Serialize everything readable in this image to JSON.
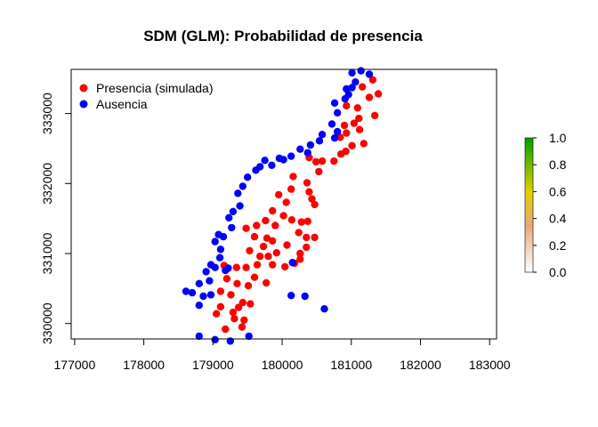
{
  "chart_data": {
    "type": "scatter",
    "title": "SDM (GLM): Probabilidad de presencia",
    "xlabel": "",
    "ylabel": "",
    "xlim": [
      176950,
      183100
    ],
    "ylim": [
      329780,
      333630
    ],
    "x_ticks": [
      177000,
      178000,
      179000,
      180000,
      181000,
      182000,
      183000
    ],
    "x_tick_labels": [
      "177000",
      "178000",
      "179000",
      "180000",
      "181000",
      "182000",
      "183000"
    ],
    "y_ticks": [
      330000,
      331000,
      332000,
      333000
    ],
    "y_tick_labels": [
      "330000",
      "331000",
      "332000",
      "333000"
    ],
    "legend_position": "top-left",
    "series": [
      {
        "name": "Presencia (simulada)",
        "color": "#ff0000",
        "points": [
          [
            180930,
            333110
          ],
          [
            181090,
            333080
          ],
          [
            181160,
            333380
          ],
          [
            181260,
            333230
          ],
          [
            181310,
            333480
          ],
          [
            181390,
            333280
          ],
          [
            181340,
            332970
          ],
          [
            181110,
            332930
          ],
          [
            180900,
            332830
          ],
          [
            181040,
            332860
          ],
          [
            180930,
            332720
          ],
          [
            181120,
            332770
          ],
          [
            180840,
            332660
          ],
          [
            181010,
            332540
          ],
          [
            181180,
            332570
          ],
          [
            180920,
            332460
          ],
          [
            180750,
            332320
          ],
          [
            180850,
            332420
          ],
          [
            180580,
            332320
          ],
          [
            180490,
            332310
          ],
          [
            180390,
            332370
          ],
          [
            180530,
            332170
          ],
          [
            180160,
            332100
          ],
          [
            180130,
            331920
          ],
          [
            180360,
            332010
          ],
          [
            180390,
            331880
          ],
          [
            180430,
            331780
          ],
          [
            180470,
            331700
          ],
          [
            180060,
            331730
          ],
          [
            179950,
            331840
          ],
          [
            179860,
            331610
          ],
          [
            180020,
            331540
          ],
          [
            180140,
            331480
          ],
          [
            180280,
            331450
          ],
          [
            180370,
            331460
          ],
          [
            180240,
            331300
          ],
          [
            179900,
            331400
          ],
          [
            179760,
            331470
          ],
          [
            179630,
            331400
          ],
          [
            179480,
            331360
          ],
          [
            179600,
            331240
          ],
          [
            179780,
            331220
          ],
          [
            179860,
            331180
          ],
          [
            179730,
            331100
          ],
          [
            179530,
            331040
          ],
          [
            179680,
            330960
          ],
          [
            179800,
            330960
          ],
          [
            179640,
            330840
          ],
          [
            179480,
            330800
          ],
          [
            179340,
            330800
          ],
          [
            179160,
            330830
          ],
          [
            179200,
            330640
          ],
          [
            179110,
            330460
          ],
          [
            179350,
            330570
          ],
          [
            179600,
            330660
          ],
          [
            179510,
            330540
          ],
          [
            179860,
            330840
          ],
          [
            180040,
            330810
          ],
          [
            180180,
            330860
          ],
          [
            180260,
            330920
          ],
          [
            180350,
            331090
          ],
          [
            180470,
            331230
          ],
          [
            180350,
            331230
          ],
          [
            180260,
            331000
          ],
          [
            180070,
            331120
          ],
          [
            179920,
            331010
          ],
          [
            179770,
            330580
          ],
          [
            179260,
            330410
          ],
          [
            179370,
            330230
          ],
          [
            179430,
            330300
          ],
          [
            179540,
            330280
          ],
          [
            179110,
            330240
          ],
          [
            179290,
            330160
          ],
          [
            179050,
            330140
          ],
          [
            179310,
            330070
          ],
          [
            179450,
            330050
          ],
          [
            179180,
            329920
          ],
          [
            179420,
            329950
          ]
        ]
      },
      {
        "name": "Ausencia",
        "color": "#0000ff",
        "points": [
          [
            181010,
            333580
          ],
          [
            181140,
            333610
          ],
          [
            181260,
            333560
          ],
          [
            181060,
            333450
          ],
          [
            180930,
            333350
          ],
          [
            181010,
            333370
          ],
          [
            180960,
            333270
          ],
          [
            180910,
            333210
          ],
          [
            180760,
            333150
          ],
          [
            180800,
            333010
          ],
          [
            180720,
            332850
          ],
          [
            180800,
            332740
          ],
          [
            180760,
            332650
          ],
          [
            180580,
            332700
          ],
          [
            180540,
            332610
          ],
          [
            180410,
            332550
          ],
          [
            180370,
            332440
          ],
          [
            180260,
            332490
          ],
          [
            180130,
            332390
          ],
          [
            180020,
            332340
          ],
          [
            179960,
            332360
          ],
          [
            179850,
            332260
          ],
          [
            179750,
            332330
          ],
          [
            179680,
            332240
          ],
          [
            179620,
            332190
          ],
          [
            179500,
            332090
          ],
          [
            179430,
            331960
          ],
          [
            179360,
            331860
          ],
          [
            179390,
            331680
          ],
          [
            179290,
            331600
          ],
          [
            179230,
            331510
          ],
          [
            179270,
            331370
          ],
          [
            179150,
            331240
          ],
          [
            179080,
            331270
          ],
          [
            179030,
            331170
          ],
          [
            179110,
            331060
          ],
          [
            179100,
            330940
          ],
          [
            178970,
            330840
          ],
          [
            179030,
            330800
          ],
          [
            179180,
            330760
          ],
          [
            178900,
            330740
          ],
          [
            178950,
            330610
          ],
          [
            178800,
            330570
          ],
          [
            178610,
            330460
          ],
          [
            178700,
            330440
          ],
          [
            178860,
            330390
          ],
          [
            178970,
            330410
          ],
          [
            178800,
            330260
          ],
          [
            179220,
            330790
          ],
          [
            180150,
            330870
          ],
          [
            180130,
            330400
          ],
          [
            180330,
            330390
          ],
          [
            180610,
            330210
          ],
          [
            178800,
            329820
          ],
          [
            179030,
            329770
          ],
          [
            179250,
            329750
          ],
          [
            179520,
            329820
          ]
        ]
      }
    ],
    "colorbar": {
      "ticks": [
        0.0,
        0.2,
        0.4,
        0.6,
        0.8,
        1.0
      ],
      "tick_labels": [
        "0.0",
        "0.2",
        "0.4",
        "0.6",
        "0.8",
        "1.0"
      ],
      "low_color": "#ffffff",
      "mid_low_color": "#e8a878",
      "mid_color": "#e0d000",
      "high_color": "#00a000"
    }
  }
}
